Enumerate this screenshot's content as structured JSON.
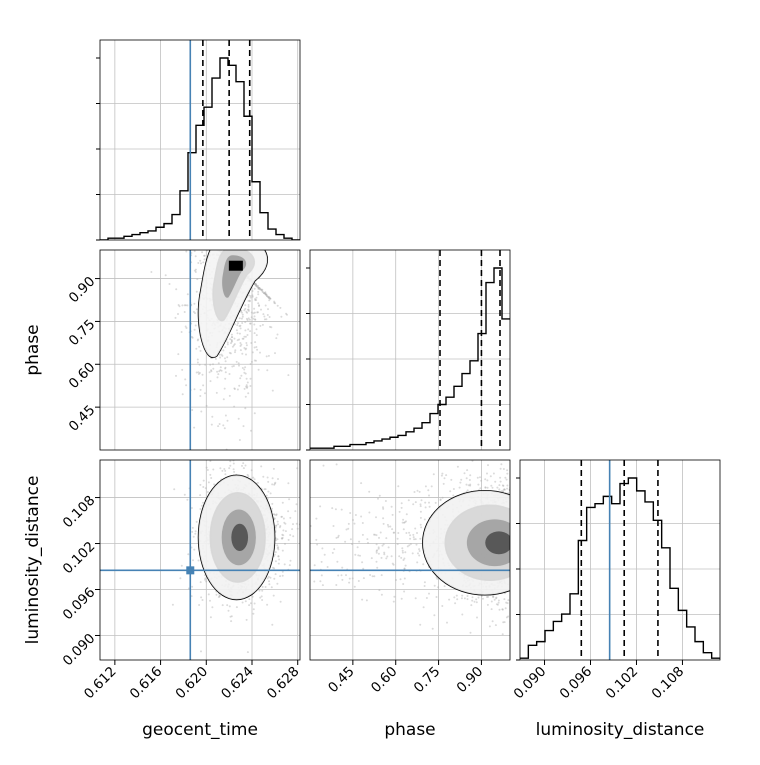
{
  "chart_data": {
    "type": "corner",
    "parameters": [
      "geocent_time",
      "phase",
      "luminosity_distance"
    ],
    "axis_labels": {
      "geocent_time": "geocent_time",
      "phase": "phase",
      "luminosity_distance": "luminosity_distance"
    },
    "ranges": {
      "geocent_time": [
        0.6107,
        0.6282
      ],
      "phase": [
        0.3,
        1.0
      ],
      "luminosity_distance": [
        0.0868,
        0.1129
      ]
    },
    "ticks": {
      "geocent_time": [
        "0.612",
        "0.616",
        "0.620",
        "0.624",
        "0.628"
      ],
      "phase": [
        "0.45",
        "0.60",
        "0.75",
        "0.90"
      ],
      "luminosity_distance": [
        "0.090",
        "0.096",
        "0.102",
        "0.108"
      ]
    },
    "truths": {
      "geocent_time": 0.6186,
      "phase": null,
      "luminosity_distance": 0.0985
    },
    "quantiles": {
      "geocent_time": [
        0.6197,
        0.622,
        0.6238
      ],
      "phase": [
        0.755,
        0.9,
        0.965
      ],
      "luminosity_distance": [
        0.0948,
        0.1004,
        0.1048
      ]
    },
    "histograms": {
      "geocent_time": {
        "bins": [
          0.6107,
          0.6282
        ],
        "counts": [
          0,
          1,
          1,
          2,
          3,
          4,
          5,
          7,
          9,
          14,
          27,
          48,
          63,
          73,
          89,
          100,
          96,
          87,
          68,
          32,
          15,
          6,
          3,
          1,
          0
        ]
      },
      "phase": {
        "bins": [
          0.3,
          1.0
        ],
        "counts": [
          1,
          1,
          1,
          2,
          2,
          3,
          3,
          4,
          5,
          6,
          7,
          8,
          10,
          12,
          15,
          20,
          25,
          29,
          35,
          42,
          49,
          64,
          92,
          100,
          72
        ]
      },
      "luminosity_distance": {
        "bins": [
          0.0868,
          0.1129
        ],
        "counts": [
          1,
          8,
          10,
          16,
          21,
          25,
          36,
          65,
          83,
          85,
          89,
          85,
          96,
          99,
          92,
          86,
          76,
          61,
          39,
          27,
          18,
          10,
          4,
          1
        ]
      }
    },
    "contour_pairs": [
      {
        "x": "geocent_time",
        "y": "phase",
        "density_peak": [
          0.6225,
          0.945
        ]
      },
      {
        "x": "geocent_time",
        "y": "luminosity_distance",
        "density_peak": [
          0.623,
          0.1028
        ]
      },
      {
        "x": "phase",
        "y": "luminosity_distance",
        "density_peak": [
          0.975,
          0.1021
        ]
      }
    ],
    "grid": true,
    "colors": {
      "truth": "#4682b4",
      "histogram": "#000000",
      "contour": "#000000",
      "scatter": "#b0b0b0",
      "grid": "#c0c0c0"
    }
  }
}
